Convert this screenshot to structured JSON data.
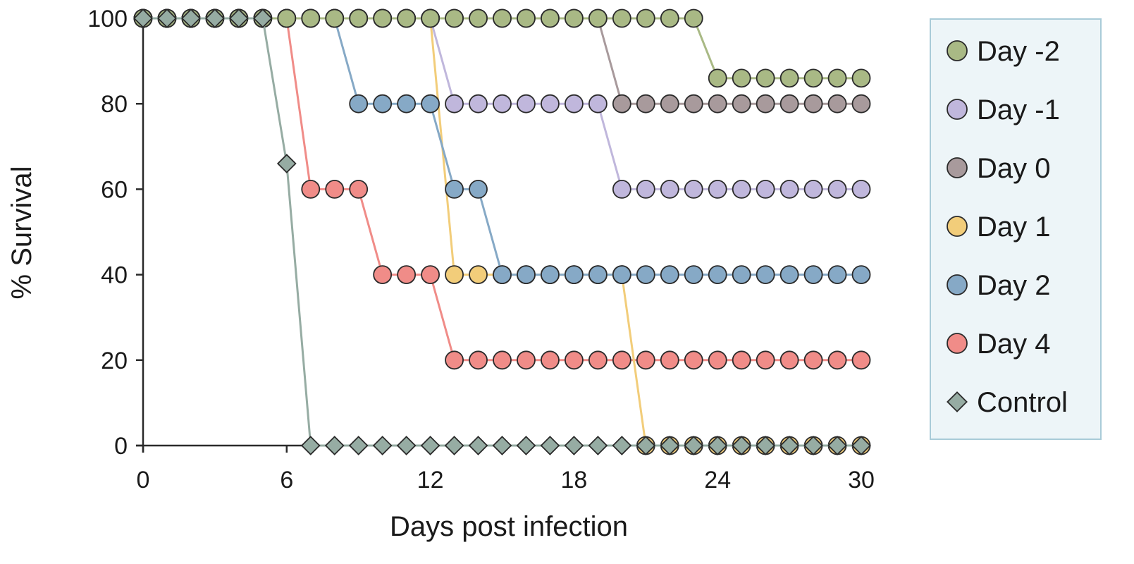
{
  "chart_data": {
    "type": "line",
    "xlabel": "Days post infection",
    "ylabel": "% Survival",
    "xlim": [
      0,
      30
    ],
    "ylim": [
      0,
      100
    ],
    "x_ticks": [
      0,
      6,
      12,
      18,
      24,
      30
    ],
    "y_ticks": [
      0,
      20,
      40,
      60,
      80,
      100
    ],
    "grid": false,
    "legend_position": "right",
    "x": [
      0,
      1,
      2,
      3,
      4,
      5,
      6,
      7,
      8,
      9,
      10,
      11,
      12,
      13,
      14,
      15,
      16,
      17,
      18,
      19,
      20,
      21,
      22,
      23,
      24,
      25,
      26,
      27,
      28,
      29,
      30
    ],
    "series": [
      {
        "name": "Day 4",
        "color": "#f08c88",
        "marker": "circle",
        "values": [
          100,
          100,
          100,
          100,
          100,
          100,
          100,
          60,
          60,
          60,
          40,
          40,
          40,
          20,
          20,
          20,
          20,
          20,
          20,
          20,
          20,
          20,
          20,
          20,
          20,
          20,
          20,
          20,
          20,
          20,
          20
        ]
      },
      {
        "name": "Day 1",
        "color": "#f2cd7a",
        "marker": "circle",
        "values": [
          100,
          100,
          100,
          100,
          100,
          100,
          100,
          100,
          100,
          100,
          100,
          100,
          100,
          40,
          40,
          40,
          40,
          40,
          40,
          40,
          40,
          0,
          0,
          0,
          0,
          0,
          0,
          0,
          0,
          0,
          0
        ]
      },
      {
        "name": "Day 2",
        "color": "#86a9c6",
        "marker": "circle",
        "values": [
          100,
          100,
          100,
          100,
          100,
          100,
          100,
          100,
          100,
          80,
          80,
          80,
          80,
          60,
          60,
          40,
          40,
          40,
          40,
          40,
          40,
          40,
          40,
          40,
          40,
          40,
          40,
          40,
          40,
          40,
          40
        ]
      },
      {
        "name": "Day -1",
        "color": "#c0b7dc",
        "marker": "circle",
        "values": [
          100,
          100,
          100,
          100,
          100,
          100,
          100,
          100,
          100,
          100,
          100,
          100,
          100,
          80,
          80,
          80,
          80,
          80,
          80,
          80,
          60,
          60,
          60,
          60,
          60,
          60,
          60,
          60,
          60,
          60,
          60
        ]
      },
      {
        "name": "Day 0",
        "color": "#a89a9c",
        "marker": "circle",
        "values": [
          100,
          100,
          100,
          100,
          100,
          100,
          100,
          100,
          100,
          100,
          100,
          100,
          100,
          100,
          100,
          100,
          100,
          100,
          100,
          100,
          80,
          80,
          80,
          80,
          80,
          80,
          80,
          80,
          80,
          80,
          80
        ]
      },
      {
        "name": "Day -2",
        "color": "#a9b985",
        "marker": "circle",
        "values": [
          100,
          100,
          100,
          100,
          100,
          100,
          100,
          100,
          100,
          100,
          100,
          100,
          100,
          100,
          100,
          100,
          100,
          100,
          100,
          100,
          100,
          100,
          100,
          100,
          86,
          86,
          86,
          86,
          86,
          86,
          86
        ]
      },
      {
        "name": "Control",
        "color": "#96aca3",
        "marker": "diamond",
        "values": [
          100,
          100,
          100,
          100,
          100,
          100,
          66,
          0,
          0,
          0,
          0,
          0,
          0,
          0,
          0,
          0,
          0,
          0,
          0,
          0,
          0,
          0,
          0,
          0,
          0,
          0,
          0,
          0,
          0,
          0,
          0
        ]
      }
    ],
    "legend_order": [
      "Day -2",
      "Day -1",
      "Day 0",
      "Day 1",
      "Day 2",
      "Day 4",
      "Control"
    ]
  }
}
